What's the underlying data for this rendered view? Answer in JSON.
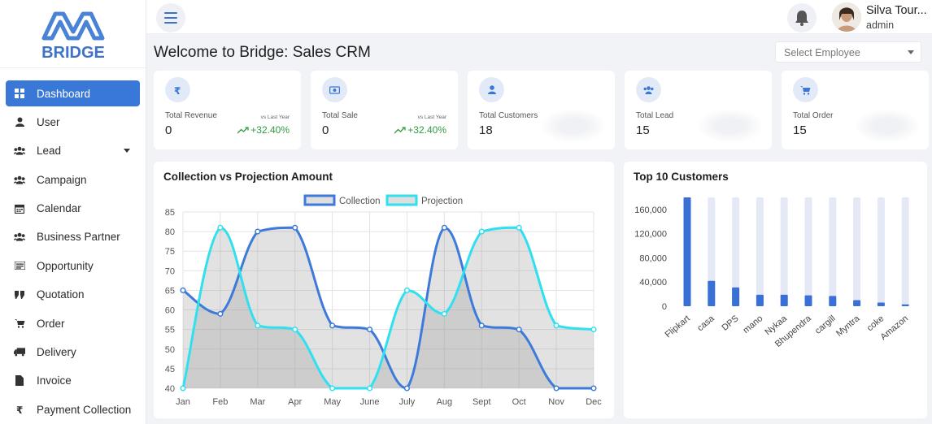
{
  "brand": {
    "name": "BRIDGE",
    "primary": "#3a78d8",
    "logo_color": "#4a83d6"
  },
  "sidebar": {
    "items": [
      {
        "label": "Dashboard",
        "icon": "grid-icon",
        "active": true
      },
      {
        "label": "User",
        "icon": "user-icon"
      },
      {
        "label": "Lead",
        "icon": "users-icon",
        "has_caret": true
      },
      {
        "label": "Campaign",
        "icon": "users-icon"
      },
      {
        "label": "Calendar",
        "icon": "calendar-icon"
      },
      {
        "label": "Business Partner",
        "icon": "users-icon"
      },
      {
        "label": "Opportunity",
        "icon": "list-icon"
      },
      {
        "label": "Quotation",
        "icon": "quote-icon"
      },
      {
        "label": "Order",
        "icon": "cart-icon"
      },
      {
        "label": "Delivery",
        "icon": "truck-icon"
      },
      {
        "label": "Invoice",
        "icon": "file-icon"
      },
      {
        "label": "Payment Collection",
        "icon": "rupee-icon"
      }
    ]
  },
  "topbar": {
    "user_name": "Silva Tour...",
    "user_role": "admin"
  },
  "page": {
    "title": "Welcome to Bridge: Sales CRM",
    "select_placeholder": "Select Employee"
  },
  "stats": [
    {
      "label": "Total Revenue",
      "value": "0",
      "vs": "vs Last Year",
      "change": "+32.40%",
      "icon": "rupee-icon"
    },
    {
      "label": "Total Sale",
      "value": "0",
      "vs": "vs Last Year",
      "change": "+32.40%",
      "icon": "money-icon"
    },
    {
      "label": "Total Customers",
      "value": "18",
      "icon": "person-icon"
    },
    {
      "label": "Total Lead",
      "value": "15",
      "icon": "group-icon"
    },
    {
      "label": "Total Order",
      "value": "15",
      "icon": "cart-icon"
    }
  ],
  "chart_data": [
    {
      "type": "area",
      "title": "Collection vs Projection Amount",
      "categories": [
        "Jan",
        "Feb",
        "Mar",
        "Apr",
        "May",
        "June",
        "July",
        "Aug",
        "Sept",
        "Oct",
        "Nov",
        "Dec"
      ],
      "series": [
        {
          "name": "Collection",
          "values": [
            65,
            59,
            80,
            81,
            56,
            55,
            40,
            81,
            56,
            55,
            40,
            40
          ],
          "color": "#3d7ad9"
        },
        {
          "name": "Projection",
          "values": [
            40,
            81,
            56,
            55,
            40,
            40,
            65,
            59,
            80,
            81,
            56,
            55
          ],
          "color": "#2fe0ee"
        }
      ],
      "ylim": [
        40,
        85
      ],
      "yticks": [
        40,
        45,
        50,
        55,
        60,
        65,
        70,
        75,
        80,
        85
      ],
      "legend": "top"
    },
    {
      "type": "bar",
      "title": "Top 10 Customers",
      "categories": [
        "Flipkart",
        "casa",
        "DPS",
        "mano",
        "Nykaa",
        "Bhupendra",
        "cargill",
        "Myntra",
        "coke",
        "Amazon"
      ],
      "values": [
        180000,
        42000,
        31000,
        19000,
        19000,
        18000,
        17000,
        10000,
        6000,
        3000
      ],
      "ylim": [
        0,
        180000
      ],
      "yticks": [
        "0",
        "40,000",
        "80,000",
        "120,000",
        "160,000"
      ],
      "yticks_values": [
        0,
        40000,
        80000,
        120000,
        160000
      ],
      "bar_color": "#3a6fd6",
      "track_color": "#e4e9f5"
    }
  ]
}
